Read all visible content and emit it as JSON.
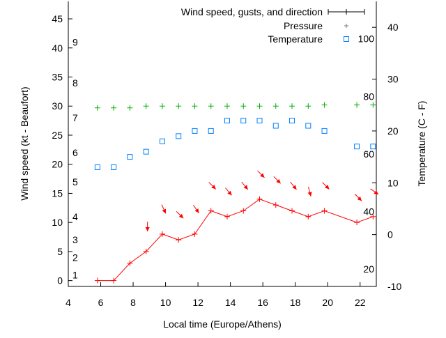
{
  "chart_data": {
    "type": "line",
    "xlabel": "Local time (Europe/Athens)",
    "ylabel": "Wind speed (kt - Beaufort)",
    "y2label": "Temperature (C - F)",
    "xlim": [
      4,
      23
    ],
    "ylim": [
      -1,
      48
    ],
    "y2lim": [
      -10,
      45
    ],
    "xticks": [
      4,
      6,
      8,
      10,
      12,
      14,
      16,
      18,
      20,
      22
    ],
    "yticks": [
      0,
      5,
      10,
      15,
      20,
      25,
      30,
      35,
      40,
      45
    ],
    "y2ticks": [
      -10,
      0,
      10,
      20,
      30,
      40
    ],
    "beaufort_labels": [
      {
        "label": "1",
        "kt": 1
      },
      {
        "label": "2",
        "kt": 4
      },
      {
        "label": "3",
        "kt": 7
      },
      {
        "label": "4",
        "kt": 11
      },
      {
        "label": "5",
        "kt": 17
      },
      {
        "label": "6",
        "kt": 22
      },
      {
        "label": "7",
        "kt": 28
      },
      {
        "label": "8",
        "kt": 34
      },
      {
        "label": "9",
        "kt": 41
      }
    ],
    "fahrenheit_labels": [
      {
        "label": "20",
        "f": 20
      },
      {
        "label": "40",
        "f": 40
      },
      {
        "label": "60",
        "f": 60
      },
      {
        "label": "80",
        "f": 80
      },
      {
        "label": "100",
        "f": 100
      }
    ],
    "legend": {
      "position": "top-right",
      "entries": [
        "Wind speed, gusts, and direction",
        "Pressure",
        "Temperature"
      ]
    },
    "x": [
      5.8,
      6.8,
      7.8,
      8.8,
      9.8,
      10.8,
      11.8,
      12.8,
      13.8,
      14.8,
      15.8,
      16.8,
      17.8,
      18.8,
      19.8,
      21.8,
      22.8
    ],
    "series": [
      {
        "name": "Wind speed, gusts, and direction",
        "color": "#ff0000",
        "axis": "y",
        "values": [
          0,
          0,
          3,
          5,
          8,
          7,
          8,
          12,
          11,
          12,
          14,
          13,
          12,
          11,
          12,
          10,
          11
        ],
        "direction_deg": [
          null,
          null,
          null,
          0,
          335,
          315,
          325,
          315,
          320,
          320,
          315,
          315,
          320,
          345,
          315,
          315,
          305
        ]
      },
      {
        "name": "Pressure",
        "color": "#00b000",
        "axis": "y",
        "values": [
          29.7,
          29.7,
          29.7,
          30,
          30,
          30,
          30,
          30,
          30,
          30,
          30,
          30,
          30,
          30,
          30.2,
          30.2,
          30.2
        ]
      },
      {
        "name": "Temperature",
        "color": "#0080ff",
        "axis": "y2",
        "values": [
          13,
          13,
          15,
          16,
          18,
          19,
          20,
          20,
          22,
          22,
          22,
          21,
          22,
          21,
          20,
          17,
          17
        ]
      }
    ]
  }
}
